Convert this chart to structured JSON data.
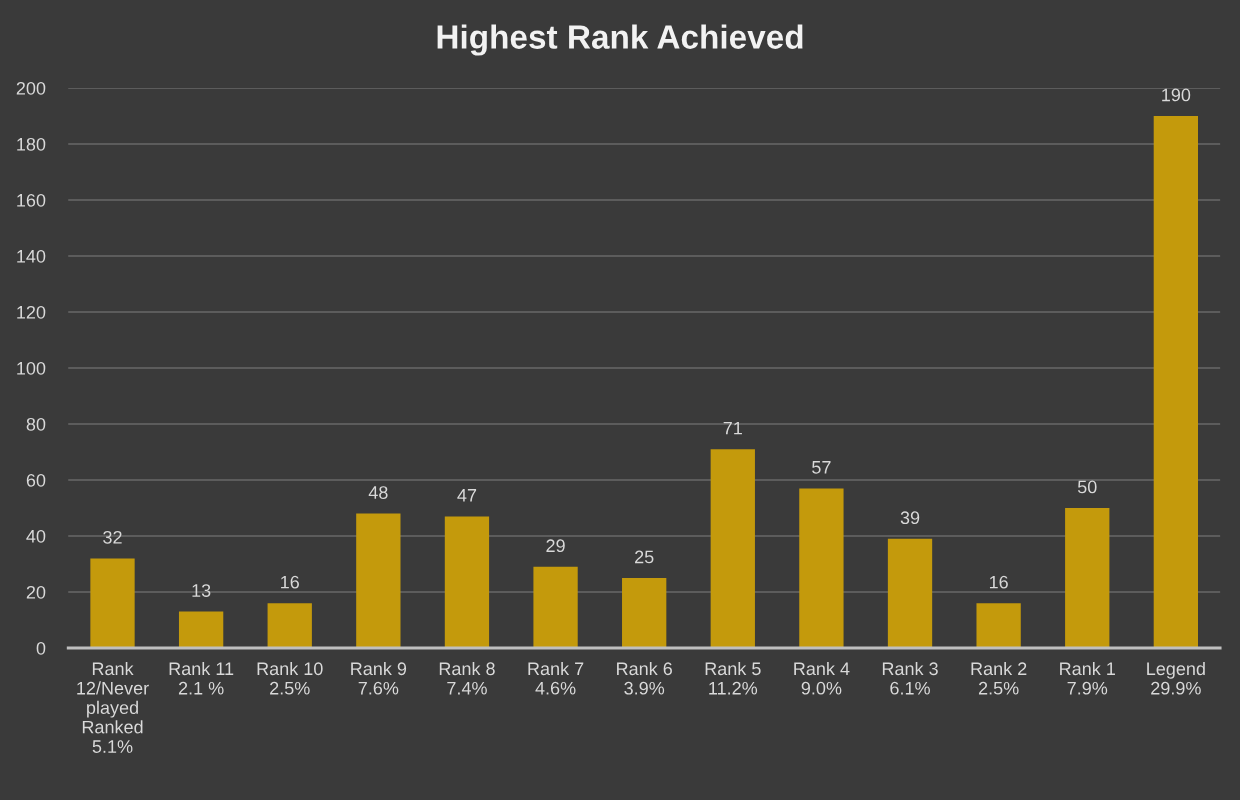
{
  "chart_data": {
    "type": "bar",
    "title": "Highest Rank Achieved",
    "categories": [
      "Rank\n12/Never\nplayed\nRanked\n5.1%",
      "Rank 11\n2.1 %",
      "Rank 10\n2.5%",
      "Rank 9\n7.6%",
      "Rank 8\n7.4%",
      "Rank 7\n4.6%",
      "Rank 6\n3.9%",
      "Rank 5\n11.2%",
      "Rank 4\n9.0%",
      "Rank 3\n6.1%",
      "Rank 2\n2.5%",
      "Rank 1\n7.9%",
      "Legend\n29.9%"
    ],
    "values": [
      32,
      13,
      16,
      48,
      47,
      29,
      25,
      71,
      57,
      39,
      16,
      50,
      190
    ],
    "color": "#c49a0c",
    "ylim": [
      0,
      200
    ],
    "yticks": [
      0,
      20,
      40,
      60,
      80,
      100,
      120,
      140,
      160,
      180,
      200
    ],
    "grid": "y",
    "data_labels": true
  }
}
